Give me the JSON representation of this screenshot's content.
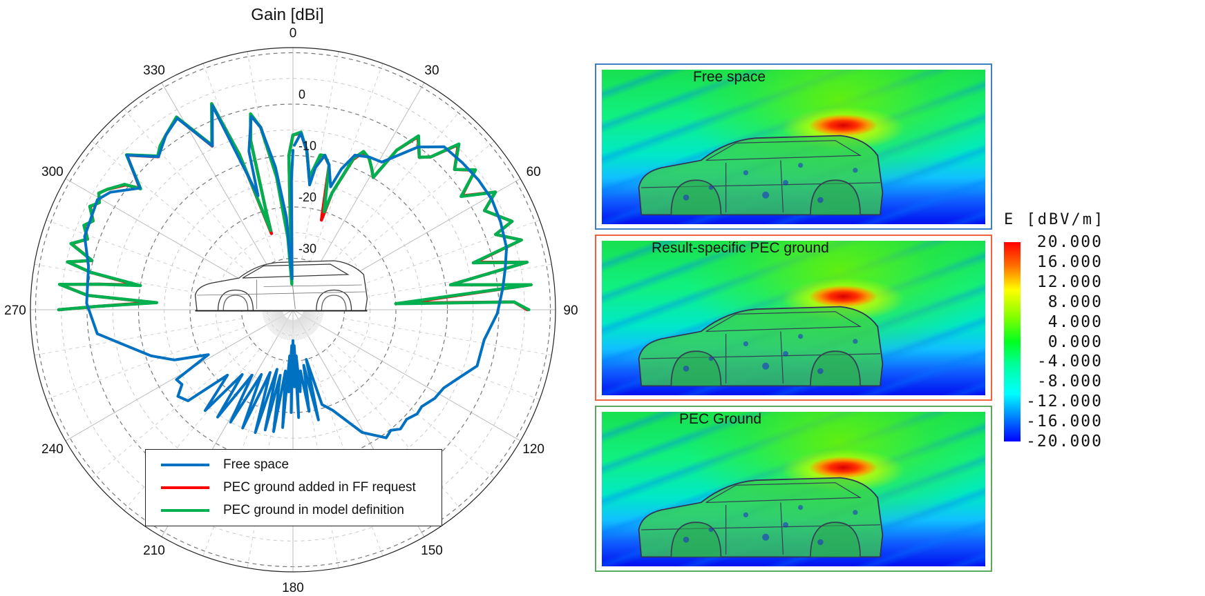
{
  "chart_data": {
    "type": "polar-line",
    "title": "Gain [dBi]",
    "angle_direction": "clockwise",
    "zero_angle": "top",
    "angle_ticks": [
      0,
      30,
      60,
      90,
      120,
      150,
      180,
      210,
      240,
      270,
      300,
      330
    ],
    "radial_ticks": [
      0,
      -10,
      -20,
      -30
    ],
    "rlim": [
      -40,
      11
    ],
    "grid": true,
    "legend_placement": "bottom-center",
    "series": [
      {
        "name": "Free space",
        "color": "#0070c0",
        "points": [
          [
            0.5,
            -8
          ],
          [
            2.6,
            -5.6
          ],
          [
            5,
            -9
          ],
          [
            7.6,
            -15.5
          ],
          [
            9,
            -12
          ],
          [
            11.7,
            -9.3
          ],
          [
            14,
            -11
          ],
          [
            17,
            -15
          ],
          [
            19,
            -11
          ],
          [
            21.8,
            -7.6
          ],
          [
            26.6,
            -6.8
          ],
          [
            31,
            -6.5
          ],
          [
            37.5,
            -0.1
          ],
          [
            42.8,
            3.2
          ],
          [
            49,
            3.6
          ],
          [
            55,
            4
          ],
          [
            61,
            4.2
          ],
          [
            67,
            3.8
          ],
          [
            73.8,
            3.2
          ],
          [
            79,
            2
          ],
          [
            84,
            1
          ],
          [
            91,
            -0.3
          ],
          [
            99,
            -2.4
          ],
          [
            107,
            -2.6
          ],
          [
            112,
            -5
          ],
          [
            117.5,
            -7
          ],
          [
            122,
            -7.5
          ],
          [
            127,
            -8.7
          ],
          [
            130,
            -8.5
          ],
          [
            134,
            -9.3
          ],
          [
            138,
            -8.8
          ],
          [
            141,
            -9.8
          ],
          [
            144,
            -9.2
          ],
          [
            150.6,
            -12.6
          ],
          [
            158.5,
            -19
          ],
          [
            163,
            -20.7
          ],
          [
            165,
            -30
          ],
          [
            167,
            -18
          ],
          [
            169,
            -29
          ],
          [
            171,
            -20
          ],
          [
            173,
            -28
          ],
          [
            175,
            -24
          ],
          [
            176,
            -31
          ],
          [
            177,
            -19
          ],
          [
            178,
            -33
          ],
          [
            179,
            -25
          ],
          [
            180,
            -34
          ],
          [
            181,
            -20
          ],
          [
            182,
            -33
          ],
          [
            183,
            -24
          ],
          [
            184,
            -31
          ],
          [
            185,
            -17
          ],
          [
            187,
            -28
          ],
          [
            189,
            -16
          ],
          [
            191,
            -27
          ],
          [
            193,
            -16
          ],
          [
            195,
            -28
          ],
          [
            197,
            -15
          ],
          [
            200,
            -27
          ],
          [
            203,
            -15
          ],
          [
            206,
            -26
          ],
          [
            209,
            -15
          ],
          [
            212,
            -25
          ],
          [
            215,
            -14.5
          ],
          [
            218,
            -24
          ],
          [
            221,
            -14
          ],
          [
            225,
            -22
          ],
          [
            229,
            -13
          ],
          [
            233,
            -12
          ],
          [
            236,
            -14
          ],
          [
            239,
            -13.6
          ],
          [
            242,
            -21.4
          ],
          [
            247,
            -15
          ],
          [
            252,
            -11
          ],
          [
            258.8,
            -6
          ],
          [
            263,
            -1.7
          ],
          [
            271.8,
            0.1
          ],
          [
            282,
            0.6
          ],
          [
            289.4,
            2.9
          ],
          [
            299.4,
            3.6
          ],
          [
            302.8,
            2.2
          ],
          [
            308.5,
            -2
          ],
          [
            313,
            4.1
          ],
          [
            318.7,
            -0.4
          ],
          [
            324,
            2
          ],
          [
            328.9,
            3.5
          ],
          [
            333.8,
            -4.5
          ],
          [
            338.5,
            2.7
          ],
          [
            343,
            -16.8
          ],
          [
            344.5,
            -8
          ],
          [
            347.8,
            -1.5
          ],
          [
            350,
            -4
          ],
          [
            353,
            -12
          ],
          [
            356,
            -22
          ],
          [
            358.5,
            -34
          ],
          [
            359.3,
            -15
          ],
          [
            360,
            -9
          ]
        ]
      },
      {
        "name": "PEC ground added in FF request",
        "color": "#ff0000",
        "points": [
          [
            270,
            5.5
          ],
          [
            271,
            -2
          ],
          [
            273,
            -12.7
          ],
          [
            274,
            0
          ],
          [
            276.2,
            5.5
          ],
          [
            277.5,
            -2
          ],
          [
            279,
            -9.2
          ],
          [
            280.5,
            0
          ],
          [
            282,
            4.7
          ],
          [
            283.8,
            0.2
          ],
          [
            286.6,
            4.9
          ],
          [
            289,
            2.2
          ],
          [
            292,
            3.7
          ],
          [
            294,
            2.5
          ],
          [
            297,
            4.2
          ],
          [
            299,
            3
          ],
          [
            301,
            4
          ],
          [
            303,
            3
          ],
          [
            306.7,
            0.6
          ],
          [
            308.5,
            -2
          ],
          [
            313,
            4.1
          ],
          [
            318.7,
            -0.4
          ],
          [
            321,
            1
          ],
          [
            324,
            2
          ],
          [
            328.9,
            3.7
          ],
          [
            333.8,
            -4.5
          ],
          [
            338.5,
            3
          ],
          [
            341,
            -8
          ],
          [
            344.3,
            -24.6
          ],
          [
            344.8,
            -20
          ],
          [
            346,
            -6
          ],
          [
            347.8,
            -1.2
          ],
          [
            350,
            -4
          ],
          [
            353,
            -14
          ],
          [
            356,
            -25.8
          ],
          [
            357.5,
            -33
          ],
          [
            358.5,
            -10
          ],
          [
            360,
            -6
          ],
          [
            362.6,
            -5.6
          ],
          [
            365,
            -9
          ],
          [
            367,
            -14
          ],
          [
            368.3,
            -12.5
          ],
          [
            370,
            -9.5
          ],
          [
            371.7,
            -9.5
          ],
          [
            374,
            -11
          ],
          [
            377.6,
            -21.7
          ],
          [
            378.5,
            -16
          ],
          [
            381.8,
            -8.5
          ],
          [
            384,
            -6.5
          ],
          [
            386.6,
            -7
          ],
          [
            389,
            -8.5
          ],
          [
            391.2,
            -9.9
          ],
          [
            393,
            -3
          ],
          [
            395.8,
            1.5
          ],
          [
            399.6,
            -1.5
          ],
          [
            402,
            0
          ],
          [
            405,
            5.4
          ],
          [
            409,
            1.6
          ],
          [
            412.5,
            4.6
          ],
          [
            416,
            -0.4
          ],
          [
            419.8,
            5.5
          ],
          [
            422.6,
            1.9
          ],
          [
            428,
            5.9
          ],
          [
            429.6,
            2
          ],
          [
            433,
            6.4
          ],
          [
            435.4,
            -3.4
          ],
          [
            438.5,
            6.4
          ],
          [
            441,
            -9
          ],
          [
            444,
            6.5
          ],
          [
            446.6,
            -18.3
          ],
          [
            448,
            3
          ],
          [
            450,
            5.5
          ]
        ]
      },
      {
        "name": "PEC ground in model definition",
        "color": "#00b050",
        "points": [
          [
            270,
            5.5
          ],
          [
            271,
            -2
          ],
          [
            273,
            -13.5
          ],
          [
            274,
            0
          ],
          [
            276.2,
            5.6
          ],
          [
            277.5,
            -2
          ],
          [
            279,
            -10
          ],
          [
            280.5,
            0
          ],
          [
            282,
            4.8
          ],
          [
            283.8,
            0.2
          ],
          [
            286.6,
            5
          ],
          [
            289,
            2.2
          ],
          [
            292,
            3.8
          ],
          [
            294,
            2.5
          ],
          [
            297,
            4.3
          ],
          [
            299,
            3
          ],
          [
            301,
            4
          ],
          [
            303,
            3
          ],
          [
            306.7,
            0.8
          ],
          [
            308.5,
            -2.2
          ],
          [
            313,
            4.2
          ],
          [
            318.7,
            -0.2
          ],
          [
            321,
            1
          ],
          [
            324,
            2
          ],
          [
            328.9,
            3.8
          ],
          [
            333.8,
            -4.3
          ],
          [
            338.5,
            3.1
          ],
          [
            341,
            -8
          ],
          [
            344.3,
            -24
          ],
          [
            344.8,
            -20
          ],
          [
            346,
            -6
          ],
          [
            347.8,
            -1
          ],
          [
            350,
            -4
          ],
          [
            353,
            -14
          ],
          [
            356,
            -26
          ],
          [
            357.5,
            -35
          ],
          [
            358.5,
            -10
          ],
          [
            360,
            -6
          ],
          [
            362.6,
            -5.4
          ],
          [
            365,
            -9
          ],
          [
            367,
            -14
          ],
          [
            368.3,
            -12.3
          ],
          [
            370,
            -9.4
          ],
          [
            371.7,
            -9.4
          ],
          [
            374,
            -11
          ],
          [
            377.6,
            -20
          ],
          [
            378.5,
            -16
          ],
          [
            381.8,
            -8.3
          ],
          [
            384,
            -6.3
          ],
          [
            386.6,
            -7
          ],
          [
            389,
            -8.5
          ],
          [
            391.2,
            -9.9
          ],
          [
            393,
            -3
          ],
          [
            395.8,
            1.7
          ],
          [
            399.6,
            -1.5
          ],
          [
            402,
            0
          ],
          [
            405,
            5.6
          ],
          [
            409,
            1.6
          ],
          [
            412.5,
            4.7
          ],
          [
            416,
            -0.6
          ],
          [
            419.8,
            5.5
          ],
          [
            422.6,
            1.9
          ],
          [
            428,
            5.9
          ],
          [
            429.6,
            2
          ],
          [
            433,
            6.4
          ],
          [
            435.4,
            -3.8
          ],
          [
            438.5,
            6.4
          ],
          [
            441,
            -9
          ],
          [
            444,
            6.5
          ],
          [
            446.6,
            -20
          ],
          [
            448,
            3
          ],
          [
            450,
            5.8
          ]
        ]
      }
    ]
  },
  "field_plots": {
    "panels": [
      {
        "title": "Free space",
        "border_color": "#3a7fc4"
      },
      {
        "title": "Result-specific PEC ground",
        "border_color": "#f0623c"
      },
      {
        "title": "PEC Ground",
        "border_color": "#5aa95a"
      }
    ],
    "colorbar": {
      "title": "E [dBV/m]",
      "range": [
        -20,
        20
      ],
      "colormap": "rainbow",
      "labels": [
        "20.000",
        "16.000",
        "12.000",
        "8.000",
        "4.000",
        "0.000",
        "-4.000",
        "-8.000",
        "-12.000",
        "-16.000",
        "-20.000"
      ]
    }
  }
}
